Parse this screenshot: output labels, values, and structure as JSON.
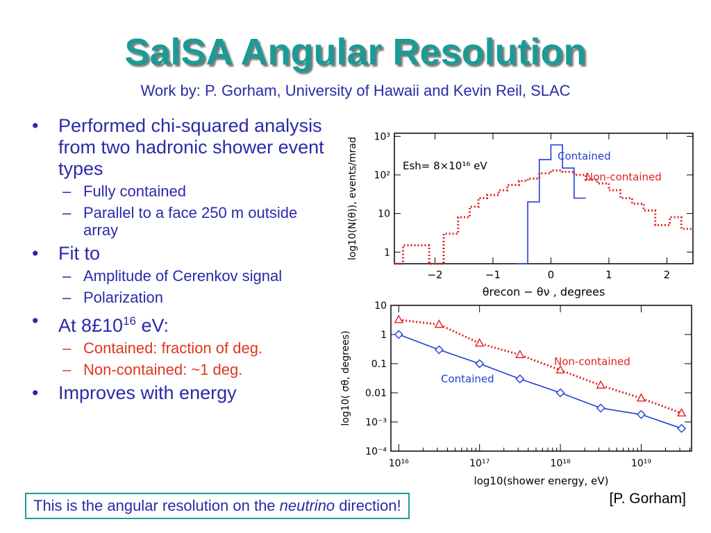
{
  "slide": {
    "title": "SalSA Angular Resolution",
    "subtitle": "Work by:  P. Gorham, University of Hawaii and Kevin Reil, SLAC",
    "credit": "[P. Gorham]",
    "callout": {
      "before": "This is the angular resolution on the ",
      "emph": "neutrino",
      "after": " direction!"
    }
  },
  "bullets": [
    {
      "text": "Performed chi-squared analysis from two hadronic shower event types",
      "sub": [
        "Fully contained",
        "Parallel to a face 250 m outside array"
      ]
    },
    {
      "text": "Fit to",
      "sub": [
        "Amplitude of Cerenkov signal",
        "Polarization"
      ]
    },
    {
      "text_pre": "At 8£10",
      "text_sup": "16",
      "text_post": " eV:",
      "sub": [
        "Contained:  fraction of deg.",
        "Non-contained: ~1 deg."
      ]
    },
    {
      "text": "Improves with energy"
    }
  ],
  "colors": {
    "title": "#1a9b96",
    "text": "#2a2aa8",
    "highlight": "#e0361a",
    "contained": "#1f3fd4",
    "noncontained": "#e02020"
  },
  "chart_data": [
    {
      "type": "line",
      "style": "histogram",
      "xlabel": "θrecon − θν , degrees",
      "ylabel": "log10(N(θ)), events/mrad",
      "xlim": [
        -2.7,
        2.45
      ],
      "ylim": [
        0.5,
        1200
      ],
      "yscale": "log",
      "xticks": [
        -2,
        -1,
        0,
        1,
        2
      ],
      "xtick_labels": [
        "−2",
        "−1",
        "0",
        "1",
        "2"
      ],
      "yticks": [
        1,
        10,
        100,
        1000
      ],
      "ytick_labels": [
        "1",
        "10",
        "10²",
        "10³"
      ],
      "annotation": "Esh= 8×10¹⁶ eV",
      "series": [
        {
          "name": "Contained",
          "color": "#1f3fd4",
          "dash": "solid",
          "x": [
            -0.6,
            -0.4,
            -0.2,
            0.0,
            0.2,
            0.4,
            0.6
          ],
          "y": [
            0.5,
            20,
            250,
            600,
            150,
            25,
            1.4
          ]
        },
        {
          "name": "Non-contained",
          "color": "#e02020",
          "dash": "dotted",
          "x": [
            -2.7,
            -2.55,
            -2.35,
            -2.1,
            -1.85,
            -1.6,
            -1.4,
            -1.25,
            -1.1,
            -0.9,
            -0.75,
            -0.55,
            -0.4,
            -0.2,
            0.0,
            0.2,
            0.4,
            0.6,
            0.8,
            1.0,
            1.2,
            1.4,
            1.6,
            1.8,
            2.05,
            2.25,
            2.45
          ],
          "y": [
            0.5,
            1.5,
            1.5,
            0.5,
            3,
            8,
            15,
            25,
            30,
            40,
            55,
            70,
            80,
            110,
            130,
            120,
            100,
            75,
            60,
            40,
            25,
            18,
            12,
            5,
            8,
            4,
            0.5
          ]
        }
      ]
    },
    {
      "type": "line",
      "xlabel": "log10(shower energy, eV)",
      "ylabel": "log10( σθ, degrees)",
      "xscale": "log",
      "yscale": "log",
      "xlim": [
        8000000000000000.0,
        4.2e+19
      ],
      "ylim": [
        0.0001,
        10
      ],
      "xticks": [
        1e+16,
        1e+17,
        1e+18,
        1e+19
      ],
      "xtick_labels": [
        "10¹⁶",
        "10¹⁷",
        "10¹⁸",
        "10¹⁹"
      ],
      "yticks": [
        0.0001,
        0.001,
        0.01,
        0.1,
        1,
        10
      ],
      "ytick_labels": [
        "10⁻⁴",
        "10⁻³",
        "0.01",
        "0.1",
        "1",
        "10"
      ],
      "series": [
        {
          "name": "Non-contained",
          "color": "#e02020",
          "marker": "triangle",
          "dash": "dotted",
          "x": [
            1e+16,
            3.16e+16,
            1e+17,
            3.16e+17,
            1e+18,
            3.16e+18,
            1e+19,
            3.16e+19
          ],
          "y": [
            3.2,
            2.2,
            0.5,
            0.2,
            0.06,
            0.018,
            0.0065,
            0.002
          ]
        },
        {
          "name": "Contained",
          "color": "#1f3fd4",
          "marker": "diamond",
          "dash": "solid",
          "x": [
            1e+16,
            3.16e+16,
            1e+17,
            3.16e+17,
            1e+18,
            3.16e+18,
            1e+19,
            3.16e+19
          ],
          "y": [
            1.0,
            0.3,
            0.1,
            0.03,
            0.01,
            0.003,
            0.0018,
            0.0006
          ]
        }
      ]
    }
  ]
}
